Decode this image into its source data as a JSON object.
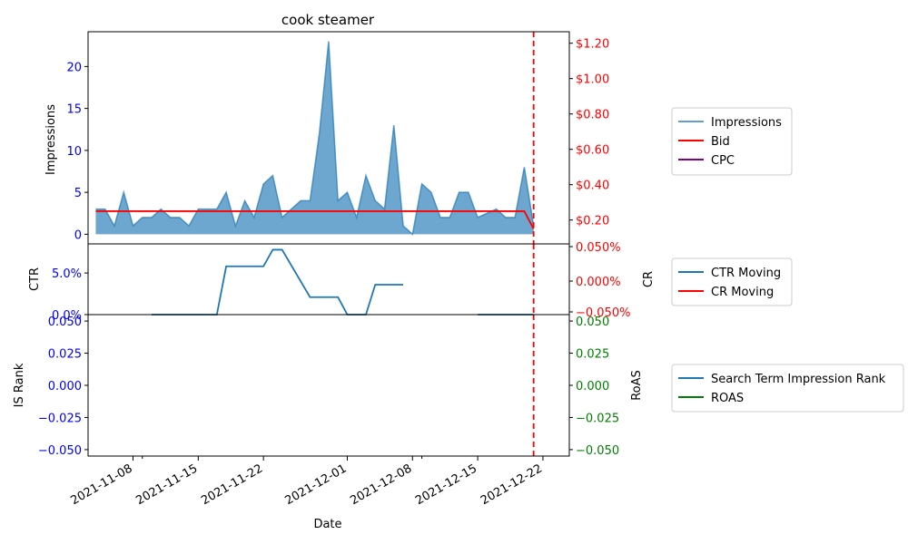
{
  "chart_data": [
    {
      "type": "area",
      "title": "cook steamer",
      "ylabel": "Impressions",
      "ylim": [
        -1.15,
        24.15
      ],
      "yticks": [
        0,
        5,
        10,
        15,
        20
      ],
      "y2ticks": [
        "$0.20",
        "$0.40",
        "$0.60",
        "$0.80",
        "$1.00",
        "$1.20"
      ],
      "y2ticks_values": [
        0.2,
        0.4,
        0.6,
        0.8,
        1.0,
        1.2
      ],
      "y2lim": [
        0.065,
        1.265
      ],
      "legend": [
        "Impressions",
        "Bid",
        "CPC"
      ],
      "legend_position": "right",
      "series": [
        {
          "name": "Impressions",
          "color": "#1f77b4",
          "x": [
            "2021-11-04",
            "2021-11-05",
            "2021-11-06",
            "2021-11-07",
            "2021-11-08",
            "2021-11-09",
            "2021-11-10",
            "2021-11-11",
            "2021-11-12",
            "2021-11-13",
            "2021-11-14",
            "2021-11-15",
            "2021-11-16",
            "2021-11-17",
            "2021-11-18",
            "2021-11-19",
            "2021-11-20",
            "2021-11-21",
            "2021-11-22",
            "2021-11-23",
            "2021-11-24",
            "2021-11-25",
            "2021-11-26",
            "2021-11-27",
            "2021-11-28",
            "2021-11-29",
            "2021-11-30",
            "2021-12-01",
            "2021-12-02",
            "2021-12-03",
            "2021-12-04",
            "2021-12-05",
            "2021-12-06",
            "2021-12-07",
            "2021-12-08",
            "2021-12-09",
            "2021-12-10",
            "2021-12-11",
            "2021-12-12",
            "2021-12-13",
            "2021-12-14",
            "2021-12-15",
            "2021-12-16",
            "2021-12-17",
            "2021-12-18",
            "2021-12-19",
            "2021-12-20",
            "2021-12-21"
          ],
          "values": [
            3,
            3,
            1,
            5,
            1,
            2,
            2,
            3,
            2,
            2,
            1,
            3,
            3,
            3,
            5,
            1,
            4,
            2,
            6,
            7,
            2,
            3,
            4,
            4,
            12,
            23,
            4,
            5,
            2,
            7,
            4,
            3,
            13,
            1,
            0,
            6,
            5,
            2,
            2,
            5,
            5,
            2,
            2.5,
            3,
            2,
            2,
            8,
            1
          ]
        },
        {
          "name": "Bid",
          "color": "#ff0000",
          "x": [
            "2021-11-04",
            "2021-12-20",
            "2021-12-21"
          ],
          "values": [
            0.25,
            0.25,
            0.15
          ]
        }
      ],
      "vline": {
        "x": "2021-12-21",
        "color": "#ff0000",
        "style": "dashed"
      }
    },
    {
      "type": "line",
      "ylabel": "CTR",
      "y2label": "CR",
      "yticks": [
        "0.0%",
        "5.0%"
      ],
      "yticks_values": [
        0.0,
        0.05
      ],
      "ylim": [
        0.0,
        0.085
      ],
      "y2ticks": [
        "−0.050%",
        "0.000%",
        "0.050%"
      ],
      "legend": [
        "CTR Moving",
        "CR Moving"
      ],
      "legend_position": "right",
      "series": [
        {
          "name": "CTR Moving",
          "color": "#1f77b4",
          "x": [
            "2021-11-10",
            "2021-11-17",
            "2021-11-18",
            "2021-11-22",
            "2021-11-23",
            "2021-11-24",
            "2021-11-27",
            "2021-11-30",
            "2021-12-01",
            "2021-12-03",
            "2021-12-04",
            "2021-12-07"
          ],
          "values": [
            0.0,
            0.0,
            0.058,
            0.058,
            0.078,
            0.078,
            0.021,
            0.021,
            0.0,
            0.0,
            0.036,
            0.036
          ]
        },
        {
          "name": "CTR Moving",
          "color": "#1f77b4",
          "x": [
            "2021-12-15",
            "2021-12-21"
          ],
          "values": [
            0.0,
            0.0
          ]
        }
      ],
      "vline": {
        "x": "2021-12-21",
        "color": "#ff0000",
        "style": "dashed"
      }
    },
    {
      "type": "line",
      "xlabel": "Date",
      "ylabel": "IS Rank",
      "y2label": "RoAS",
      "yticks": [
        "−0.050",
        "−0.025",
        "0.000",
        "0.025",
        "0.050"
      ],
      "yticks_values": [
        -0.05,
        -0.025,
        0.0,
        0.025,
        0.05
      ],
      "ylim": [
        -0.055,
        0.055
      ],
      "xticks": [
        "2021-11-08",
        "2021-11-15",
        "2021-11-22",
        "2021-12-01",
        "2021-12-08",
        "2021-12-15",
        "2021-12-22"
      ],
      "legend": [
        "Search Term Impression Rank",
        "ROAS"
      ],
      "legend_position": "right",
      "series": [],
      "vline": {
        "x": "2021-12-21",
        "color": "#ff0000",
        "style": "dashed"
      }
    }
  ],
  "colors": {
    "blue": "#1f77b4",
    "red": "#ff0000",
    "purple": "#800080",
    "green": "#008000",
    "axis_blue": "#0000ff"
  },
  "legend_colors": {
    "Impressions": "#1f77b4",
    "Bid": "#ff0000",
    "CPC": "#800080",
    "CTR Moving": "#1f77b4",
    "CR Moving": "#ff0000",
    "Search Term Impression Rank": "#1f77b4",
    "ROAS": "#008000"
  }
}
